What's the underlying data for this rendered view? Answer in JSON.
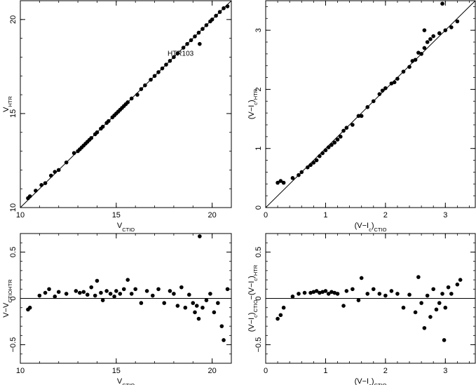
{
  "chart_data": [
    {
      "type": "scatter",
      "panel": "top-left",
      "xlabel": {
        "main": "V",
        "sub": "CTIO"
      },
      "ylabel": {
        "main": "V",
        "sub": "HTR"
      },
      "xlim": [
        10,
        21
      ],
      "ylim": [
        10,
        21
      ],
      "xticks": [
        "10",
        "15",
        "20"
      ],
      "xtick_values": [
        10,
        15,
        20
      ],
      "yticks": [
        "10",
        "15",
        "20"
      ],
      "ytick_values": [
        10,
        15,
        20
      ],
      "line": {
        "kind": "identity",
        "from": [
          10,
          10
        ],
        "to": [
          21,
          21
        ]
      },
      "annotations": [
        {
          "text": "HTR103",
          "x": 19.5,
          "y": 18.7
        }
      ],
      "x": [
        10.4,
        10.5,
        10.8,
        11.1,
        11.3,
        11.6,
        11.8,
        12.0,
        12.4,
        12.8,
        13.0,
        13.1,
        13.2,
        13.3,
        13.4,
        13.5,
        13.6,
        13.7,
        13.9,
        14.0,
        14.2,
        14.3,
        14.5,
        14.6,
        14.8,
        14.9,
        15.0,
        15.1,
        15.2,
        15.3,
        15.4,
        15.5,
        15.6,
        15.8,
        16.1,
        16.3,
        16.5,
        16.8,
        17.0,
        17.2,
        17.4,
        17.6,
        17.8,
        18.0,
        18.2,
        18.5,
        18.7,
        18.9,
        19.1,
        19.3,
        19.5,
        19.7,
        19.9,
        20.0,
        20.2,
        20.4,
        20.6,
        20.8,
        19.35
      ],
      "y": [
        10.5,
        10.6,
        10.9,
        11.2,
        11.3,
        11.7,
        11.9,
        12.0,
        12.4,
        12.9,
        13.0,
        13.1,
        13.2,
        13.3,
        13.4,
        13.5,
        13.6,
        13.7,
        13.9,
        14.0,
        14.2,
        14.3,
        14.5,
        14.6,
        14.8,
        14.9,
        15.0,
        15.1,
        15.2,
        15.3,
        15.4,
        15.5,
        15.6,
        15.8,
        16.0,
        16.3,
        16.5,
        16.8,
        17.0,
        17.2,
        17.4,
        17.6,
        17.8,
        18.0,
        18.2,
        18.5,
        18.7,
        18.9,
        19.1,
        19.3,
        19.5,
        19.7,
        19.9,
        20.0,
        20.2,
        20.4,
        20.6,
        20.7,
        18.7
      ]
    },
    {
      "type": "scatter",
      "panel": "top-right",
      "xlabel": {
        "main": "(V−I",
        "sub1": "c",
        "mid": ")",
        "sub": "CTIO"
      },
      "ylabel": {
        "main": "(V−I",
        "sub1": "c",
        "mid": ")",
        "sub": "HTR"
      },
      "xlim": [
        0,
        3.5
      ],
      "ylim": [
        0,
        3.5
      ],
      "xticks": [
        "0",
        "1",
        "2",
        "3"
      ],
      "xtick_values": [
        0,
        1,
        2,
        3
      ],
      "yticks": [
        "0",
        "1",
        "2",
        "3"
      ],
      "ytick_values": [
        0,
        1,
        2,
        3
      ],
      "line": {
        "kind": "identity",
        "from": [
          0,
          0
        ],
        "to": [
          3.5,
          3.5
        ]
      },
      "x": [
        0.2,
        0.25,
        0.3,
        0.45,
        0.55,
        0.6,
        0.7,
        0.75,
        0.8,
        0.85,
        0.9,
        0.95,
        1.0,
        1.05,
        1.1,
        1.15,
        1.2,
        1.25,
        1.3,
        1.35,
        1.45,
        1.55,
        1.6,
        1.7,
        1.8,
        1.9,
        1.95,
        2.0,
        2.1,
        2.15,
        2.2,
        2.3,
        2.4,
        2.45,
        2.5,
        2.55,
        2.6,
        2.65,
        2.7,
        2.75,
        2.8,
        2.9,
        3.0,
        3.1,
        3.2,
        2.65,
        2.95
      ],
      "y": [
        0.42,
        0.45,
        0.42,
        0.5,
        0.55,
        0.6,
        0.68,
        0.72,
        0.76,
        0.8,
        0.87,
        0.92,
        0.97,
        1.02,
        1.06,
        1.1,
        1.15,
        1.2,
        1.3,
        1.35,
        1.4,
        1.55,
        1.55,
        1.7,
        1.8,
        1.92,
        1.98,
        2.02,
        2.1,
        2.12,
        2.18,
        2.3,
        2.38,
        2.48,
        2.5,
        2.62,
        2.6,
        2.7,
        2.8,
        2.85,
        2.9,
        2.95,
        3.0,
        3.05,
        3.15,
        3.0,
        3.45
      ]
    },
    {
      "type": "scatter",
      "panel": "bottom-left",
      "xlabel": {
        "main": "V",
        "sub": "CTIO"
      },
      "ylabel": {
        "main": "V",
        "sub": "CTIO",
        "mid": "−V",
        "sub2": "HTR"
      },
      "xlim": [
        10,
        21
      ],
      "ylim": [
        -0.7,
        0.7
      ],
      "xticks": [
        "10",
        "15",
        "20"
      ],
      "xtick_values": [
        10,
        15,
        20
      ],
      "yticks": [
        "0.5",
        "0",
        "−0.5"
      ],
      "ytick_values": [
        0.5,
        0,
        -0.5
      ],
      "line": {
        "kind": "horizontal",
        "y": 0
      },
      "x": [
        10.4,
        10.5,
        11.0,
        11.3,
        11.5,
        11.8,
        12.0,
        12.4,
        12.9,
        13.1,
        13.3,
        13.5,
        13.7,
        13.9,
        14.0,
        14.2,
        14.3,
        14.5,
        14.7,
        14.9,
        15.0,
        15.2,
        15.4,
        15.6,
        15.8,
        16.0,
        16.3,
        16.6,
        16.9,
        17.2,
        17.5,
        17.8,
        18.0,
        18.2,
        18.4,
        18.6,
        18.8,
        19.0,
        19.1,
        19.2,
        19.3,
        19.35,
        19.5,
        19.7,
        19.9,
        20.1,
        20.3,
        20.5,
        20.6,
        20.8
      ],
      "y": [
        -0.12,
        -0.1,
        0.03,
        0.06,
        0.1,
        0.02,
        0.07,
        0.05,
        0.08,
        0.06,
        0.07,
        0.04,
        0.12,
        0.03,
        0.19,
        0.06,
        -0.02,
        0.08,
        0.05,
        0.02,
        0.08,
        0.05,
        0.1,
        0.2,
        0.05,
        0.1,
        -0.05,
        0.08,
        0.03,
        0.1,
        -0.05,
        0.08,
        0.05,
        -0.08,
        0.12,
        -0.1,
        0.04,
        -0.05,
        -0.15,
        -0.08,
        -0.22,
        0.67,
        -0.1,
        -0.02,
        0.05,
        -0.15,
        -0.05,
        -0.3,
        -0.45,
        0.1
      ]
    },
    {
      "type": "scatter",
      "panel": "bottom-right",
      "xlabel": {
        "main": "(V−I",
        "sub1": "c",
        "mid": ")",
        "sub": "CTIO"
      },
      "ylabel": {
        "main": "(V−I",
        "sub1": "c",
        "mid": ")",
        "sub": "CTIO",
        "mid2": "−(V−I",
        "sub3": "c",
        "mid3": ")",
        "sub2": "HTR"
      },
      "xlim": [
        0,
        3.5
      ],
      "ylim": [
        -0.7,
        0.7
      ],
      "xticks": [
        "0",
        "1",
        "2",
        "3"
      ],
      "xtick_values": [
        0,
        1,
        2,
        3
      ],
      "yticks": [
        "0.5",
        "0",
        "−0.5"
      ],
      "ytick_values": [
        0.5,
        0,
        -0.5
      ],
      "line": {
        "kind": "horizontal",
        "y": 0
      },
      "x": [
        0.2,
        0.25,
        0.3,
        0.45,
        0.55,
        0.65,
        0.75,
        0.8,
        0.85,
        0.9,
        0.95,
        1.0,
        1.05,
        1.1,
        1.15,
        1.2,
        1.3,
        1.35,
        1.45,
        1.55,
        1.6,
        1.7,
        1.8,
        1.9,
        2.0,
        2.1,
        2.2,
        2.3,
        2.4,
        2.5,
        2.55,
        2.6,
        2.65,
        2.7,
        2.75,
        2.8,
        2.85,
        2.9,
        2.95,
        3.0,
        3.05,
        3.1,
        3.2,
        3.25,
        2.98
      ],
      "y": [
        -0.22,
        -0.18,
        -0.1,
        0.02,
        0.05,
        0.06,
        0.06,
        0.07,
        0.08,
        0.06,
        0.07,
        0.08,
        0.05,
        0.07,
        0.06,
        0.05,
        -0.08,
        0.08,
        0.1,
        -0.02,
        0.22,
        0.05,
        0.1,
        0.05,
        0.03,
        0.08,
        0.05,
        -0.1,
        0.04,
        -0.15,
        0.23,
        -0.05,
        -0.32,
        0.03,
        -0.2,
        0.1,
        -0.12,
        -0.05,
        0.05,
        -0.1,
        0.12,
        0.05,
        0.15,
        0.2,
        -0.45
      ]
    }
  ]
}
